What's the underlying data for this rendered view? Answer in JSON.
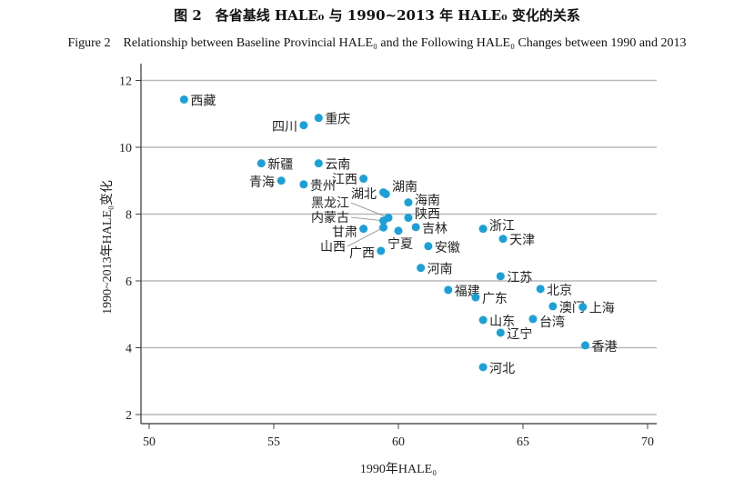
{
  "title_cn": "图 2　各省基线 HALE₀ 与 1990~2013 年 HALE₀ 变化的关系",
  "title_en": "Figure 2　Relationship between Baseline Provincial HALE₀ and the Following HALE₀ Changes between 1990 and 2013",
  "chart_data": {
    "type": "scatter",
    "xlabel": "1990年HALE₀",
    "ylabel": "1990~2013年HALE₀变化",
    "xlim": [
      49.6,
      70.5
    ],
    "ylim": [
      1.7,
      12.3
    ],
    "xticks": [
      50,
      55,
      60,
      65,
      70
    ],
    "yticks": [
      2,
      4,
      6,
      8,
      10,
      12
    ],
    "grid": "horizontal",
    "point_color": "#1ba1d8",
    "points": [
      {
        "label": "西藏",
        "x": 51.4,
        "y": 11.43
      },
      {
        "label": "四川",
        "x": 56.2,
        "y": 10.66
      },
      {
        "label": "重庆",
        "x": 56.8,
        "y": 10.88
      },
      {
        "label": "新疆",
        "x": 54.5,
        "y": 9.52
      },
      {
        "label": "云南",
        "x": 56.8,
        "y": 9.52
      },
      {
        "label": "青海",
        "x": 55.3,
        "y": 9.0
      },
      {
        "label": "贵州",
        "x": 56.2,
        "y": 8.89
      },
      {
        "label": "江西",
        "x": 58.6,
        "y": 9.06
      },
      {
        "label": "湖北",
        "x": 59.4,
        "y": 8.65
      },
      {
        "label": "湖南",
        "x": 59.5,
        "y": 8.6
      },
      {
        "label": "海南",
        "x": 60.4,
        "y": 8.35
      },
      {
        "label": "甘肃",
        "x": 58.6,
        "y": 7.56
      },
      {
        "label": "内蒙古",
        "x": 59.4,
        "y": 7.8
      },
      {
        "label": "黑龙江",
        "x": 59.6,
        "y": 7.89
      },
      {
        "label": "山西",
        "x": 59.4,
        "y": 7.6
      },
      {
        "label": "宁夏",
        "x": 60.0,
        "y": 7.5
      },
      {
        "label": "陕西",
        "x": 60.4,
        "y": 7.89
      },
      {
        "label": "吉林",
        "x": 60.7,
        "y": 7.61
      },
      {
        "label": "浙江",
        "x": 63.4,
        "y": 7.56
      },
      {
        "label": "天津",
        "x": 64.2,
        "y": 7.26
      },
      {
        "label": "广西",
        "x": 59.3,
        "y": 6.9
      },
      {
        "label": "安徽",
        "x": 61.2,
        "y": 7.04
      },
      {
        "label": "河南",
        "x": 60.9,
        "y": 6.39
      },
      {
        "label": "江苏",
        "x": 64.1,
        "y": 6.14
      },
      {
        "label": "北京",
        "x": 65.7,
        "y": 5.76
      },
      {
        "label": "福建",
        "x": 62.0,
        "y": 5.73
      },
      {
        "label": "广东",
        "x": 63.1,
        "y": 5.51
      },
      {
        "label": "澳门",
        "x": 66.2,
        "y": 5.24
      },
      {
        "label": "上海",
        "x": 67.4,
        "y": 5.22
      },
      {
        "label": "台湾",
        "x": 65.4,
        "y": 4.86
      },
      {
        "label": "山东",
        "x": 63.4,
        "y": 4.83
      },
      {
        "label": "辽宁",
        "x": 64.1,
        "y": 4.45
      },
      {
        "label": "香港",
        "x": 67.5,
        "y": 4.07
      },
      {
        "label": "河北",
        "x": 63.4,
        "y": 3.42
      }
    ]
  }
}
